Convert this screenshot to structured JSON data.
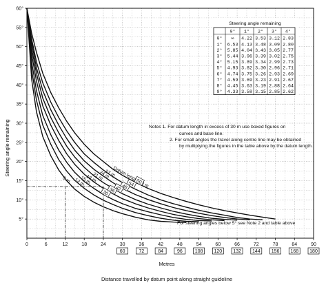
{
  "chart_data": {
    "type": "line",
    "ylabel": "Steering angle remaining",
    "xlabel": "Metres",
    "xlabel_secondary": "Distance travelled by datum point along straight guideline",
    "x_ticks": [
      0,
      6,
      12,
      18,
      24,
      30,
      36,
      42,
      48,
      54,
      60,
      66,
      72,
      78,
      84,
      90
    ],
    "x_secondary_ticks": [
      60,
      72,
      84,
      96,
      108,
      120,
      132,
      144,
      156,
      168,
      180
    ],
    "y_ticks": [
      "5°",
      "10°",
      "15°",
      "20°",
      "25°",
      "30°",
      "35°",
      "40°",
      "45°",
      "50°",
      "55°",
      "60°"
    ],
    "xlim": [
      0,
      90
    ],
    "ylim": [
      0,
      60
    ],
    "grid": true,
    "series": [
      {
        "name": "Datum length  30 m",
        "boxed": "60",
        "x": [
          0,
          1.5,
          3,
          5,
          7.5,
          10,
          12.5,
          15,
          18,
          21,
          24,
          27,
          30,
          34,
          38,
          42,
          46,
          50,
          54,
          58,
          62,
          66,
          70,
          74,
          78
        ],
        "y": [
          60,
          53.5,
          48.5,
          43,
          38,
          34,
          30.5,
          27.5,
          24.5,
          22,
          20,
          18,
          16.4,
          14.6,
          13,
          11.7,
          10.6,
          9.6,
          8.7,
          7.9,
          7.2,
          6.6,
          6,
          5.5,
          5
        ]
      },
      {
        "name": "27 m",
        "boxed": "54",
        "x": [
          0,
          1.5,
          3,
          5,
          7.5,
          10,
          12.5,
          15,
          18,
          21,
          24,
          27,
          30,
          34,
          38,
          42,
          46,
          50,
          54,
          58,
          62,
          66,
          70,
          74
        ],
        "y": [
          60,
          52,
          46,
          40.5,
          35.5,
          31.5,
          28,
          25,
          22,
          19.8,
          17.8,
          16,
          14.5,
          12.8,
          11.3,
          10,
          9,
          8.1,
          7.3,
          6.6,
          6,
          5.4,
          5,
          4.8
        ]
      },
      {
        "name": "24 m",
        "boxed": "48",
        "x": [
          0,
          1.5,
          3,
          5,
          7.5,
          10,
          12.5,
          15,
          18,
          21,
          24,
          27,
          30,
          34,
          38,
          42,
          46,
          50,
          54,
          58,
          62,
          66,
          70
        ],
        "y": [
          60,
          51,
          44.5,
          38.5,
          33.5,
          29.5,
          26,
          23,
          20.2,
          18,
          16.2,
          14.5,
          13,
          11.4,
          10.1,
          9,
          8,
          7.2,
          6.5,
          5.9,
          5.4,
          5,
          4.8
        ]
      },
      {
        "name": "21 m",
        "boxed": "42",
        "x": [
          0,
          1.5,
          3,
          5,
          7.5,
          10,
          12.5,
          15,
          18,
          21,
          24,
          27,
          30,
          34,
          38,
          42,
          46,
          50,
          54,
          58,
          62,
          66
        ],
        "y": [
          60,
          49.5,
          43,
          36.5,
          31.5,
          27.5,
          24,
          21.2,
          18.5,
          16.3,
          14.5,
          13,
          11.6,
          10.1,
          8.9,
          7.9,
          7,
          6.3,
          5.7,
          5.2,
          4.9,
          4.7
        ]
      },
      {
        "name": "18 m",
        "boxed": "36",
        "x": [
          0,
          1.5,
          3,
          5,
          7.5,
          10,
          12.5,
          15,
          18,
          21,
          24,
          27,
          30,
          34,
          38,
          42,
          46,
          50,
          54,
          58,
          62
        ],
        "y": [
          60,
          48,
          41,
          34.5,
          29.5,
          25.5,
          22,
          19.3,
          16.7,
          14.7,
          13,
          11.6,
          10.3,
          9,
          7.9,
          7,
          6.2,
          5.6,
          5.1,
          4.8,
          4.6
        ]
      },
      {
        "name": "15 m",
        "boxed": "30",
        "x": [
          0,
          1.5,
          3,
          5,
          7.5,
          10,
          12.5,
          15,
          18,
          21,
          24,
          27,
          30,
          34,
          38,
          42,
          46,
          50,
          54,
          58
        ],
        "y": [
          60,
          46,
          38.5,
          32,
          27,
          23,
          19.8,
          17.2,
          14.8,
          13,
          11.4,
          10.1,
          9,
          7.8,
          6.9,
          6.1,
          5.4,
          4.9,
          4.6,
          4.5
        ]
      },
      {
        "name": "12 m",
        "boxed": "",
        "x": [
          0,
          1.5,
          3,
          5,
          7.5,
          10,
          12.5,
          15,
          18,
          21,
          24,
          27,
          30,
          34,
          38,
          42,
          46,
          50,
          54
        ],
        "y": [
          60,
          44,
          36,
          29.5,
          24.5,
          20.5,
          17.5,
          15.1,
          13,
          11.3,
          9.9,
          8.8,
          7.8,
          6.7,
          5.9,
          5.2,
          4.7,
          4.4,
          4.3
        ]
      },
      {
        "name": "9 m",
        "boxed": "",
        "x": [
          0,
          1.5,
          3,
          5,
          7.5,
          10,
          12.5,
          15,
          18,
          21,
          24,
          27,
          30,
          34,
          38,
          42,
          46,
          50
        ],
        "y": [
          60,
          41.5,
          33,
          26.5,
          21.5,
          17.8,
          15,
          12.8,
          10.9,
          9.4,
          8.2,
          7.2,
          6.4,
          5.5,
          4.8,
          4.4,
          4.2,
          4.1
        ]
      }
    ],
    "reference_lines": [
      {
        "y": 13.5,
        "x_end": 24
      },
      {
        "x": 12,
        "y_end": 13.5
      },
      {
        "x": 24,
        "y_end": 13.5
      }
    ],
    "table": {
      "title": "Steering angle remaining",
      "columns": [
        "",
        "0°",
        "1°",
        "2°",
        "3°",
        "4°"
      ],
      "rows": [
        [
          "0°",
          "∞",
          "4.22",
          "3.53",
          "3.12",
          "2.83"
        ],
        [
          "1°",
          "6.53",
          "4.13",
          "3.48",
          "3.09",
          "2.80"
        ],
        [
          "2°",
          "5.85",
          "4.04",
          "3.43",
          "3.05",
          "2.77"
        ],
        [
          "3°",
          "5.44",
          "3.96",
          "3.39",
          "3.02",
          "2.75"
        ],
        [
          "4°",
          "5.15",
          "3.89",
          "3.34",
          "2.99",
          "2.73"
        ],
        [
          "5°",
          "4.93",
          "3.82",
          "3.30",
          "2.96",
          "2.71"
        ],
        [
          "6°",
          "4.74",
          "3.75",
          "3.26",
          "2.93",
          "2.69"
        ],
        [
          "7°",
          "4.59",
          "3.69",
          "3.23",
          "2.91",
          "2.67"
        ],
        [
          "8°",
          "4.45",
          "3.63",
          "3.19",
          "2.88",
          "2.64"
        ],
        [
          "9°",
          "4.33",
          "3.58",
          "3.15",
          "2.85",
          "2.62"
        ]
      ]
    },
    "notes": [
      "Notes 1. For datum length in excess of 30 m use boxed figures on",
      "curves and base line.",
      "2. For small angles the travel along centre line may be obtained",
      "by multiplying the figures in the table above by the datum length."
    ],
    "bottom_note": "For steering angles below 5° see Note 2 and table above"
  }
}
